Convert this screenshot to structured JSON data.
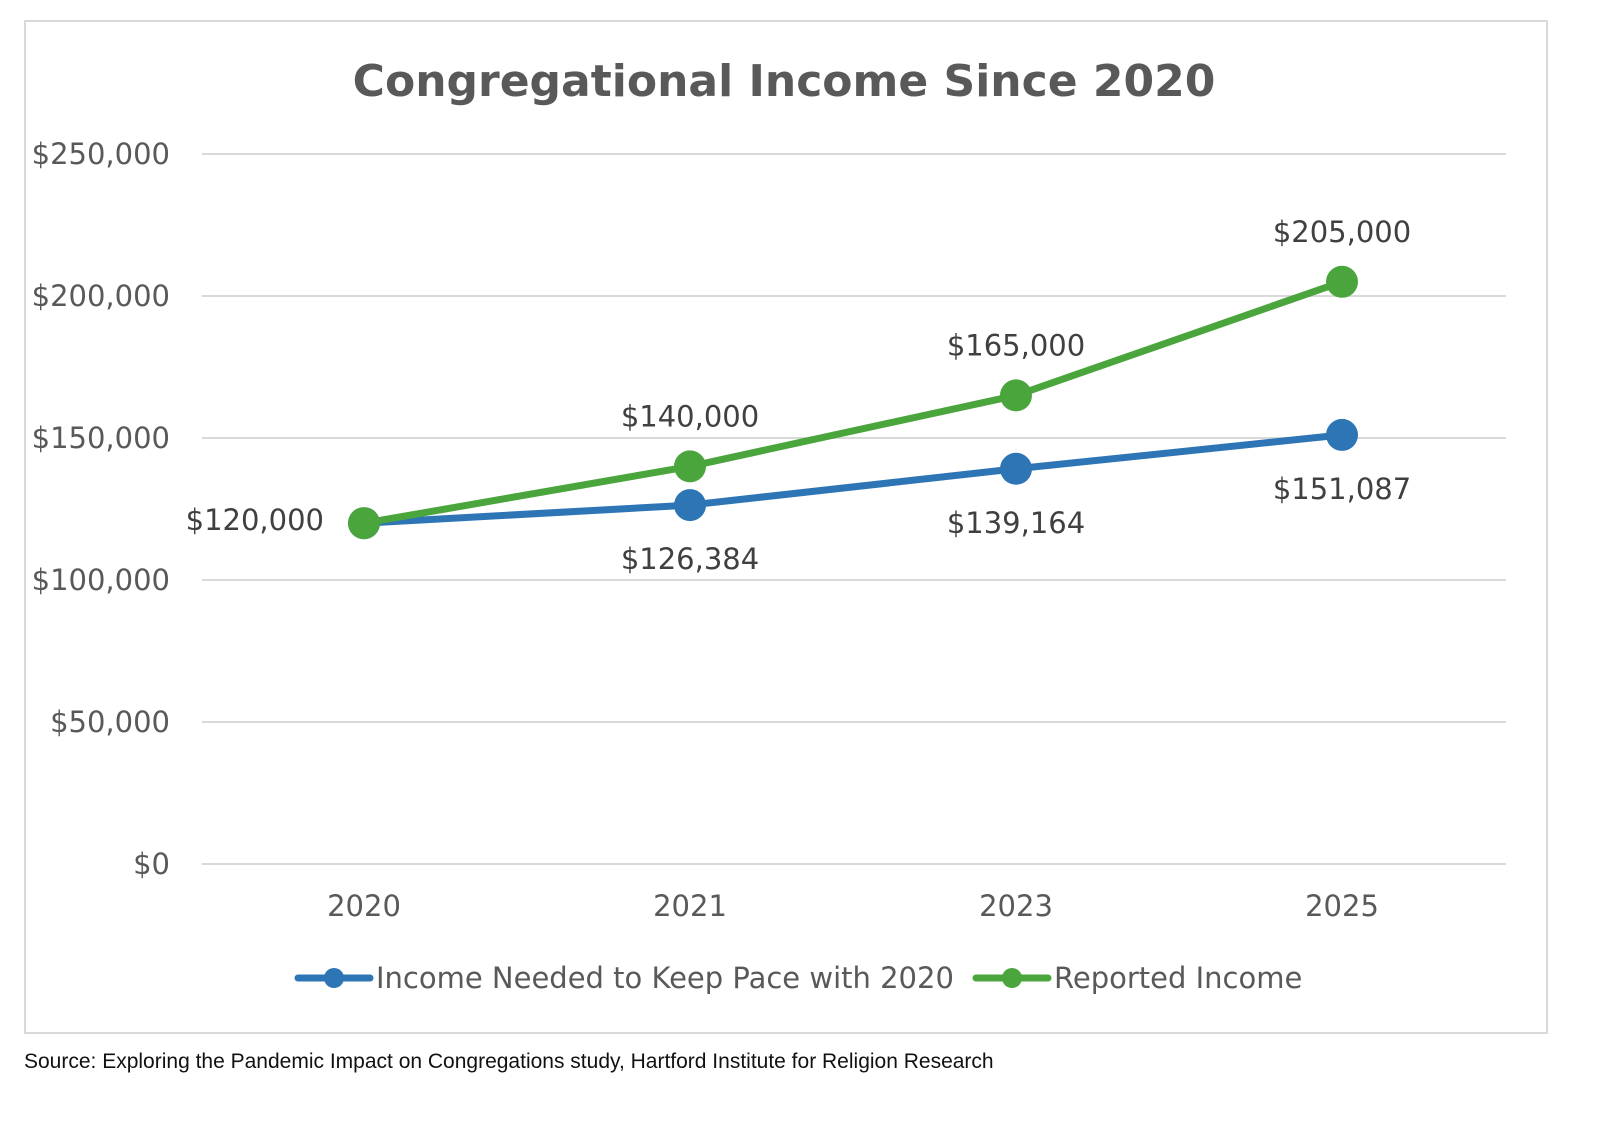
{
  "chart_data": {
    "type": "line",
    "title": "Congregational Income Since 2020",
    "categories": [
      "2020",
      "2021",
      "2023",
      "2025"
    ],
    "ylim": [
      0,
      250000
    ],
    "yticks": [
      0,
      50000,
      100000,
      150000,
      200000,
      250000
    ],
    "ytick_labels": [
      "$0",
      "$50,000",
      "$100,000",
      "$150,000",
      "$200,000",
      "$250,000"
    ],
    "grid": true,
    "legend_position": "bottom",
    "series": [
      {
        "name": "Income Needed to Keep Pace with 2020",
        "color": "#2e75b6",
        "values": [
          120000,
          126384,
          139164,
          151087
        ],
        "labels": [
          "$120,000",
          "$126,384",
          "$139,164",
          "$151,087"
        ],
        "label_placement": [
          "left",
          "below",
          "below",
          "below"
        ]
      },
      {
        "name": "Reported Income",
        "color": "#4aa63c",
        "values": [
          120000,
          140000,
          165000,
          205000
        ],
        "labels": [
          "$120,000",
          "$140,000",
          "$165,000",
          "$205,000"
        ],
        "label_placement": [
          "none",
          "above",
          "above",
          "above"
        ]
      }
    ]
  },
  "source_note": "Source: Exploring the Pandemic Impact on Congregations study, Hartford Institute for Religion Research",
  "colors": {
    "gridline": "#d9d9d9",
    "axis_text": "#595959",
    "frame": "#d9d9d9"
  }
}
